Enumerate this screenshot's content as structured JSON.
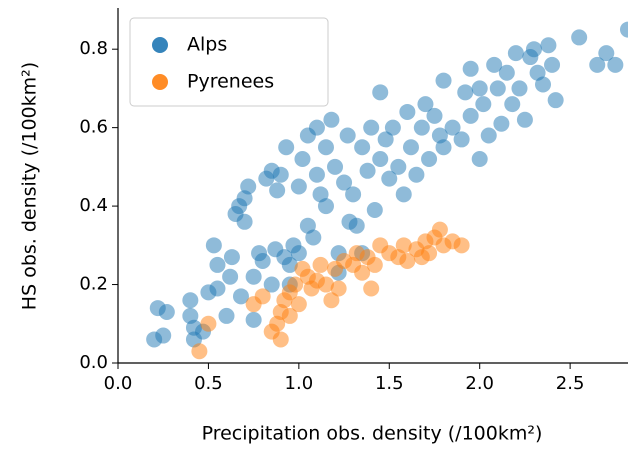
{
  "chart_data": {
    "type": "scatter",
    "xlabel": "Precipitation obs. density (/100km²)",
    "ylabel": "HS obs. density (/100km²)",
    "xlim": [
      0,
      2.82
    ],
    "ylim": [
      0,
      0.905
    ],
    "xticks": [
      {
        "value": 0,
        "label": "0.0"
      },
      0.5,
      {
        "value": 1,
        "label": "1.0"
      },
      1.5,
      {
        "value": 2,
        "label": "2.0"
      },
      2.5
    ],
    "yticks": [
      {
        "value": 0,
        "label": "0.0"
      },
      0.2,
      0.4,
      0.6,
      0.8
    ],
    "legend": "upper left",
    "alpha": 0.5,
    "series": [
      {
        "name": "Alps",
        "color": "#1f77b4",
        "x": [
          0.2,
          0.22,
          0.25,
          0.27,
          0.4,
          0.4,
          0.42,
          0.42,
          0.47,
          0.5,
          0.53,
          0.55,
          0.55,
          0.6,
          0.62,
          0.63,
          0.65,
          0.67,
          0.68,
          0.7,
          0.7,
          0.72,
          0.75,
          0.75,
          0.78,
          0.8,
          0.82,
          0.85,
          0.85,
          0.87,
          0.88,
          0.9,
          0.92,
          0.93,
          0.95,
          0.95,
          0.97,
          1.0,
          1.0,
          1.02,
          1.05,
          1.05,
          1.08,
          1.1,
          1.1,
          1.12,
          1.15,
          1.15,
          1.18,
          1.2,
          1.22,
          1.22,
          1.25,
          1.27,
          1.28,
          1.3,
          1.32,
          1.35,
          1.35,
          1.38,
          1.4,
          1.42,
          1.45,
          1.45,
          1.48,
          1.5,
          1.52,
          1.55,
          1.58,
          1.6,
          1.62,
          1.65,
          1.68,
          1.7,
          1.72,
          1.75,
          1.78,
          1.8,
          1.8,
          1.85,
          1.9,
          1.92,
          1.95,
          1.95,
          2.0,
          2.0,
          2.02,
          2.05,
          2.08,
          2.1,
          2.12,
          2.15,
          2.18,
          2.2,
          2.22,
          2.25,
          2.28,
          2.3,
          2.32,
          2.35,
          2.38,
          2.4,
          2.42,
          2.55,
          2.65,
          2.7,
          2.75,
          2.82
        ],
        "y": [
          0.06,
          0.14,
          0.07,
          0.13,
          0.16,
          0.12,
          0.09,
          0.06,
          0.08,
          0.18,
          0.3,
          0.25,
          0.19,
          0.12,
          0.22,
          0.27,
          0.38,
          0.4,
          0.17,
          0.42,
          0.36,
          0.45,
          0.11,
          0.22,
          0.28,
          0.26,
          0.47,
          0.2,
          0.49,
          0.29,
          0.44,
          0.48,
          0.27,
          0.55,
          0.25,
          0.2,
          0.3,
          0.28,
          0.45,
          0.52,
          0.58,
          0.35,
          0.32,
          0.6,
          0.48,
          0.43,
          0.4,
          0.55,
          0.62,
          0.5,
          0.28,
          0.23,
          0.46,
          0.58,
          0.36,
          0.43,
          0.35,
          0.55,
          0.28,
          0.49,
          0.6,
          0.39,
          0.69,
          0.52,
          0.57,
          0.47,
          0.6,
          0.5,
          0.43,
          0.64,
          0.55,
          0.48,
          0.6,
          0.66,
          0.52,
          0.63,
          0.58,
          0.72,
          0.55,
          0.6,
          0.57,
          0.69,
          0.63,
          0.75,
          0.7,
          0.52,
          0.66,
          0.58,
          0.76,
          0.7,
          0.61,
          0.74,
          0.66,
          0.79,
          0.7,
          0.62,
          0.78,
          0.8,
          0.74,
          0.71,
          0.81,
          0.76,
          0.67,
          0.83,
          0.76,
          0.79,
          0.76,
          0.85
        ]
      },
      {
        "name": "Pyrenees",
        "color": "#ff7f0e",
        "x": [
          0.45,
          0.5,
          0.75,
          0.8,
          0.85,
          0.88,
          0.9,
          0.9,
          0.92,
          0.95,
          0.95,
          0.98,
          1.0,
          1.02,
          1.05,
          1.07,
          1.1,
          1.12,
          1.15,
          1.18,
          1.2,
          1.22,
          1.25,
          1.3,
          1.32,
          1.35,
          1.38,
          1.4,
          1.42,
          1.45,
          1.5,
          1.55,
          1.58,
          1.6,
          1.65,
          1.68,
          1.7,
          1.72,
          1.75,
          1.78,
          1.8,
          1.85,
          1.9
        ],
        "y": [
          0.03,
          0.1,
          0.15,
          0.17,
          0.08,
          0.1,
          0.13,
          0.06,
          0.16,
          0.12,
          0.18,
          0.2,
          0.15,
          0.24,
          0.22,
          0.19,
          0.21,
          0.25,
          0.2,
          0.16,
          0.24,
          0.19,
          0.26,
          0.25,
          0.28,
          0.23,
          0.27,
          0.19,
          0.25,
          0.3,
          0.28,
          0.27,
          0.3,
          0.26,
          0.29,
          0.27,
          0.31,
          0.28,
          0.32,
          0.34,
          0.3,
          0.31,
          0.3
        ]
      }
    ]
  }
}
